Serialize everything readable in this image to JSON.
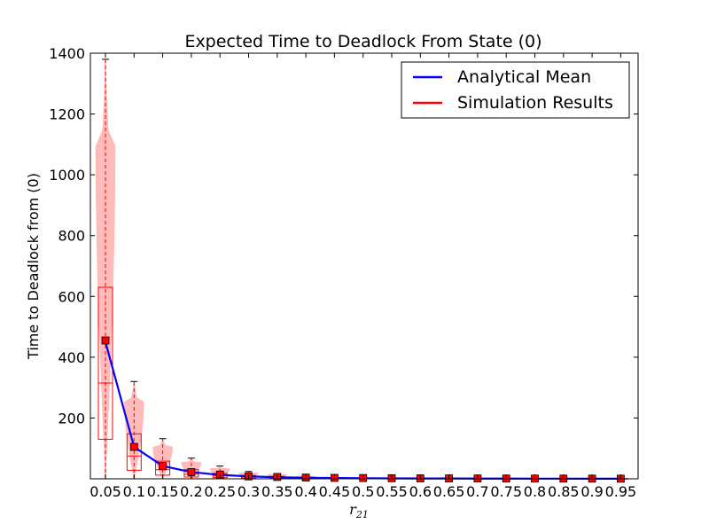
{
  "chart_data": {
    "type": "line",
    "title": "Expected Time to Deadlock From State (0)",
    "xlabel": "r",
    "xlabel_sub": "21",
    "ylabel": "Time to Deadlock from (0)",
    "ylim": [
      0,
      1400
    ],
    "yticks": [
      200,
      400,
      600,
      800,
      1000,
      1200,
      1400
    ],
    "categories": [
      "0.05",
      "0.1",
      "0.15",
      "0.2",
      "0.25",
      "0.3",
      "0.35",
      "0.4",
      "0.45",
      "0.5",
      "0.55",
      "0.6",
      "0.65",
      "0.7",
      "0.75",
      "0.8",
      "0.85",
      "0.9",
      "0.95"
    ],
    "legend_position": "top-right",
    "grid": false,
    "series": [
      {
        "name": "Analytical Mean",
        "color": "#0000ff",
        "values": [
          450,
          105,
          42,
          22,
          13,
          8,
          5,
          3.5,
          2.5,
          2,
          1.5,
          1.2,
          1,
          0.8,
          0.7,
          0.6,
          0.5,
          0.4,
          0.3
        ]
      },
      {
        "name": "Simulation Results",
        "color": "#ff0000",
        "means": [
          455,
          105,
          42,
          22,
          14,
          8,
          6,
          4,
          3,
          2.5,
          2,
          1.5,
          1.2,
          1,
          0.8,
          0.7,
          0.6,
          0.5,
          0.4
        ],
        "boxes": [
          {
            "q1": 130,
            "median": 315,
            "q3": 630,
            "whisker_low": 0,
            "whisker_high": 1380
          },
          {
            "q1": 28,
            "median": 75,
            "q3": 148,
            "whisker_low": 0,
            "whisker_high": 320
          },
          {
            "q1": 12,
            "median": 30,
            "q3": 58,
            "whisker_low": 0,
            "whisker_high": 132
          },
          {
            "q1": 6,
            "median": 15,
            "q3": 30,
            "whisker_low": 0,
            "whisker_high": 68
          },
          {
            "q1": 4,
            "median": 10,
            "q3": 18,
            "whisker_low": 0,
            "whisker_high": 42
          },
          {
            "q1": 2,
            "median": 6,
            "q3": 11,
            "whisker_low": 0,
            "whisker_high": 24
          },
          {
            "q1": 1.5,
            "median": 4,
            "q3": 8,
            "whisker_low": 0,
            "whisker_high": 17
          },
          {
            "q1": 1,
            "median": 3,
            "q3": 5,
            "whisker_low": 0,
            "whisker_high": 11
          },
          {
            "q1": 0.8,
            "median": 2,
            "q3": 4,
            "whisker_low": 0,
            "whisker_high": 8
          },
          {
            "q1": 0.6,
            "median": 1.5,
            "q3": 3,
            "whisker_low": 0,
            "whisker_high": 6
          },
          {
            "q1": 0.5,
            "median": 1.2,
            "q3": 2.5,
            "whisker_low": 0,
            "whisker_high": 5
          },
          {
            "q1": 0.4,
            "median": 1,
            "q3": 2,
            "whisker_low": 0,
            "whisker_high": 4
          },
          {
            "q1": 0.3,
            "median": 0.8,
            "q3": 1.6,
            "whisker_low": 0,
            "whisker_high": 3.5
          },
          {
            "q1": 0.3,
            "median": 0.7,
            "q3": 1.3,
            "whisker_low": 0,
            "whisker_high": 3
          },
          {
            "q1": 0.2,
            "median": 0.6,
            "q3": 1.1,
            "whisker_low": 0,
            "whisker_high": 2.5
          },
          {
            "q1": 0.2,
            "median": 0.5,
            "q3": 1,
            "whisker_low": 0,
            "whisker_high": 2.2
          },
          {
            "q1": 0.2,
            "median": 0.4,
            "q3": 0.9,
            "whisker_low": 0,
            "whisker_high": 2
          },
          {
            "q1": 0.1,
            "median": 0.35,
            "q3": 0.8,
            "whisker_low": 0,
            "whisker_high": 1.8
          },
          {
            "q1": 0.1,
            "median": 0.3,
            "q3": 0.7,
            "whisker_low": 0,
            "whisker_high": 1.5
          }
        ]
      }
    ],
    "style": {
      "violin_fill": "#ffb3b3",
      "box_color": "#ff0000",
      "whisker_color": "#000000"
    }
  }
}
